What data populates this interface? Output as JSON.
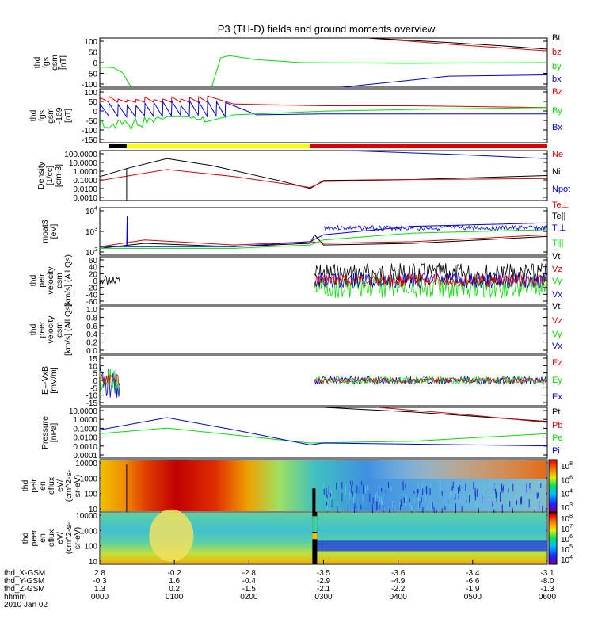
{
  "title": "P3 (TH-D) fields and ground moments overview",
  "colors": {
    "black": "#000000",
    "red": "#e00000",
    "green": "#00e000",
    "blue": "#0000e0",
    "yellow": "#ffff00"
  },
  "chart_data": [
    {
      "type": "line",
      "panel": "fgs",
      "ylabel": [
        "thd",
        "fgs",
        "gsm",
        "[nT]"
      ],
      "ytick_labels": [
        "100",
        "50",
        "0",
        "-50",
        "-100"
      ],
      "ylim": [
        -100,
        100
      ],
      "series": [
        {
          "name": "Bt",
          "color": "black"
        },
        {
          "name": "bz",
          "color": "red"
        },
        {
          "name": "by",
          "color": "green"
        },
        {
          "name": "bx",
          "color": "blue"
        }
      ]
    },
    {
      "type": "line",
      "panel": "fgs_mfs",
      "ylabel": [
        "thd",
        "fgs",
        "gsm",
        "-169",
        "[nT]"
      ],
      "ytick_labels": [
        "100",
        "50",
        "0",
        "-50",
        "-100",
        "-150"
      ],
      "ylim": [
        -175,
        125
      ],
      "series": [
        {
          "name": "Bz",
          "color": "red"
        },
        {
          "name": "By",
          "color": "green"
        },
        {
          "name": "Bx",
          "color": "blue"
        }
      ]
    },
    {
      "type": "line",
      "panel": "density",
      "ylabel": [
        "Density",
        "[1/cc]",
        "[cm-3]"
      ],
      "ytick_labels": [
        "100.0000",
        "10.0000",
        "1.0000",
        "0.1000",
        "0.0100",
        "0.0010"
      ],
      "log": true,
      "series": [
        {
          "name": "Ne",
          "color": "red"
        },
        {
          "name": "Ni",
          "color": "black"
        },
        {
          "name": "Npot",
          "color": "blue"
        }
      ]
    },
    {
      "type": "line",
      "panel": "temperature",
      "ylabel": [
        "moat3",
        "[eV]"
      ],
      "ytick_labels": [
        "10",
        "10",
        "10"
      ],
      "ytick_exp": [
        "4",
        "3",
        "2"
      ],
      "log": true,
      "series": [
        {
          "name": "Te⊥",
          "color": "red"
        },
        {
          "name": "Te||",
          "color": "black"
        },
        {
          "name": "Ti⊥",
          "color": "blue"
        },
        {
          "name": "Ti||",
          "color": "green"
        }
      ]
    },
    {
      "type": "line",
      "panel": "peir_velocity",
      "ylabel": [
        "thd",
        "peir",
        "velocity",
        "gsm",
        "[km/s] (All Qs)"
      ],
      "ytick_labels": [
        "60",
        "40",
        "20",
        "0",
        "-20",
        "-40",
        "-60"
      ],
      "ylim": [
        -60,
        60
      ],
      "series": [
        {
          "name": "Vt",
          "color": "black"
        },
        {
          "name": "Vz",
          "color": "red"
        },
        {
          "name": "Vy",
          "color": "green"
        },
        {
          "name": "Vx",
          "color": "blue"
        }
      ]
    },
    {
      "type": "line",
      "panel": "peer_velocity",
      "ylabel": [
        "thd",
        "peer",
        "velocity",
        "gsm",
        "[km/s] (All Qs)"
      ],
      "ytick_labels": [
        "1.0",
        "0.8",
        "0.6",
        "0.4",
        "0.2",
        "0.0"
      ],
      "ylim": [
        0,
        1
      ],
      "series": [
        {
          "name": "Vt",
          "color": "black"
        },
        {
          "name": "Vz",
          "color": "red"
        },
        {
          "name": "Vy",
          "color": "green"
        },
        {
          "name": "Vx",
          "color": "blue"
        }
      ]
    },
    {
      "type": "line",
      "panel": "efield",
      "ylabel": [
        "E=-VxB",
        "[mV/m]"
      ],
      "ytick_labels": [
        "15",
        "10",
        "5",
        "0",
        "-5",
        "-10",
        "-15"
      ],
      "ylim": [
        -15,
        15
      ],
      "series": [
        {
          "name": "Ez",
          "color": "red"
        },
        {
          "name": "Ey",
          "color": "green"
        },
        {
          "name": "Ex",
          "color": "blue"
        }
      ]
    },
    {
      "type": "line",
      "panel": "pressure",
      "ylabel": [
        "Pressure",
        "[nPa]"
      ],
      "ytick_labels": [
        "10.0000",
        "1.0000",
        "0.1000",
        "0.0100",
        "0.0010",
        "0.0001"
      ],
      "log": true,
      "series": [
        {
          "name": "Pt",
          "color": "black"
        },
        {
          "name": "Pb",
          "color": "red"
        },
        {
          "name": "Pe",
          "color": "green"
        },
        {
          "name": "Pi",
          "color": "blue"
        }
      ]
    },
    {
      "type": "heatmap",
      "panel": "peir_spec",
      "ylabel": [
        "thd",
        "peir",
        "en",
        "eflux",
        "eV/",
        "(cm^2-s-",
        "sr-eV)"
      ],
      "ytick_labels": [
        "10000",
        "1000",
        "100",
        "10"
      ],
      "colorbar_base": "10",
      "colorbar_exp": [
        "8",
        "6",
        "4",
        "3"
      ]
    },
    {
      "type": "heatmap",
      "panel": "peer_spec",
      "ylabel": [
        "thd",
        "peer",
        "en",
        "eflux",
        "eV/",
        "(cm^2-s-",
        "sr-eV)"
      ],
      "ytick_labels": [
        "10000",
        "1000",
        "100",
        "10"
      ],
      "colorbar_base": "10",
      "colorbar_exp": [
        "8",
        "7",
        "6",
        "5",
        "4"
      ]
    }
  ],
  "xaxis": {
    "rows": [
      {
        "label": "thd_X-GSM",
        "values": [
          "2.8",
          "-0.2",
          "-2.8",
          "-3.5",
          "-3.6",
          "-3.4",
          "-3.1"
        ]
      },
      {
        "label": "thd_Y-GSM",
        "values": [
          "-0.3",
          "1.6",
          "-0.4",
          "-2.9",
          "-4.9",
          "-6.6",
          "-8.0"
        ]
      },
      {
        "label": "thd_Z-GSM",
        "values": [
          "1.3",
          "0.2",
          "-1.5",
          "-2.1",
          "-2.2",
          "-1.9",
          "-1.3"
        ]
      },
      {
        "label": "hhmm",
        "values": [
          "0000",
          "0100",
          "0200",
          "0300",
          "0400",
          "0500",
          "0600"
        ]
      }
    ],
    "date": "2010 Jan 02"
  }
}
